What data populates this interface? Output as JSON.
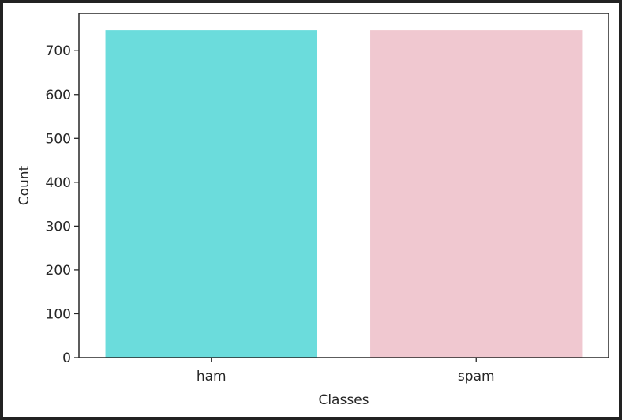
{
  "chart_data": {
    "type": "bar",
    "categories": [
      "ham",
      "spam"
    ],
    "values": [
      747,
      747
    ],
    "colors": [
      "#6bdcdc",
      "#f0c8d0"
    ],
    "xlabel": "Classes",
    "ylabel": "Count",
    "ylim": [
      0,
      785
    ],
    "yticks": [
      0,
      100,
      200,
      300,
      400,
      500,
      600,
      700
    ],
    "grid": false,
    "legend": "none"
  }
}
